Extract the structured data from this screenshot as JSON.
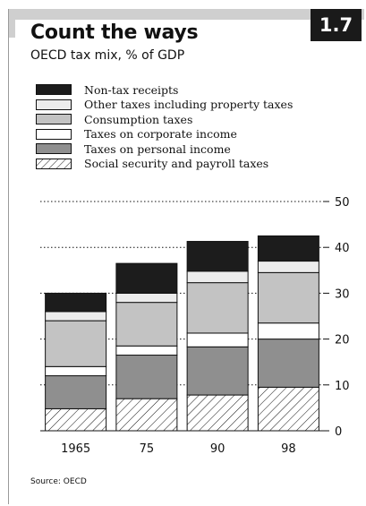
{
  "header": {
    "badge": "1.7",
    "title": "Count the ways",
    "subtitle": "OECD tax mix, % of GDP"
  },
  "source": "Source: OECD",
  "colors": {
    "non_tax": "#1c1c1c",
    "other_taxes": "#ececec",
    "consumption": "#c3c3c3",
    "corporate": "#ffffff",
    "personal": "#8f8f8f",
    "social_security": "hatch"
  },
  "chart_data": {
    "type": "bar",
    "stacked": true,
    "title": "Count the ways",
    "subtitle": "OECD tax mix, % of GDP",
    "categories": [
      "1965",
      "75",
      "90",
      "98"
    ],
    "ylim": [
      0,
      50
    ],
    "yticks": [
      0,
      10,
      20,
      30,
      40,
      50
    ],
    "grid": "dotted at 30, 40, 50",
    "y_axis_side": "right",
    "legend_position": "top-left",
    "series": [
      {
        "name": "Social security and payroll taxes",
        "values": [
          4.8,
          7.0,
          7.8,
          9.5
        ]
      },
      {
        "name": "Taxes on personal income",
        "values": [
          7.2,
          9.5,
          10.5,
          10.5
        ]
      },
      {
        "name": "Taxes on corporate income",
        "values": [
          2.0,
          2.0,
          3.0,
          3.5
        ]
      },
      {
        "name": "Consumption taxes",
        "values": [
          10.0,
          9.5,
          11.0,
          11.0
        ]
      },
      {
        "name": "Other taxes including property taxes",
        "values": [
          2.0,
          2.0,
          2.5,
          2.5
        ]
      },
      {
        "name": "Non-tax receipts",
        "values": [
          4.0,
          6.5,
          6.5,
          5.5
        ]
      }
    ],
    "legend_order": [
      "Non-tax receipts",
      "Other taxes including property taxes",
      "Consumption taxes",
      "Taxes on corporate income",
      "Taxes on personal income",
      "Social security and payroll taxes"
    ]
  }
}
